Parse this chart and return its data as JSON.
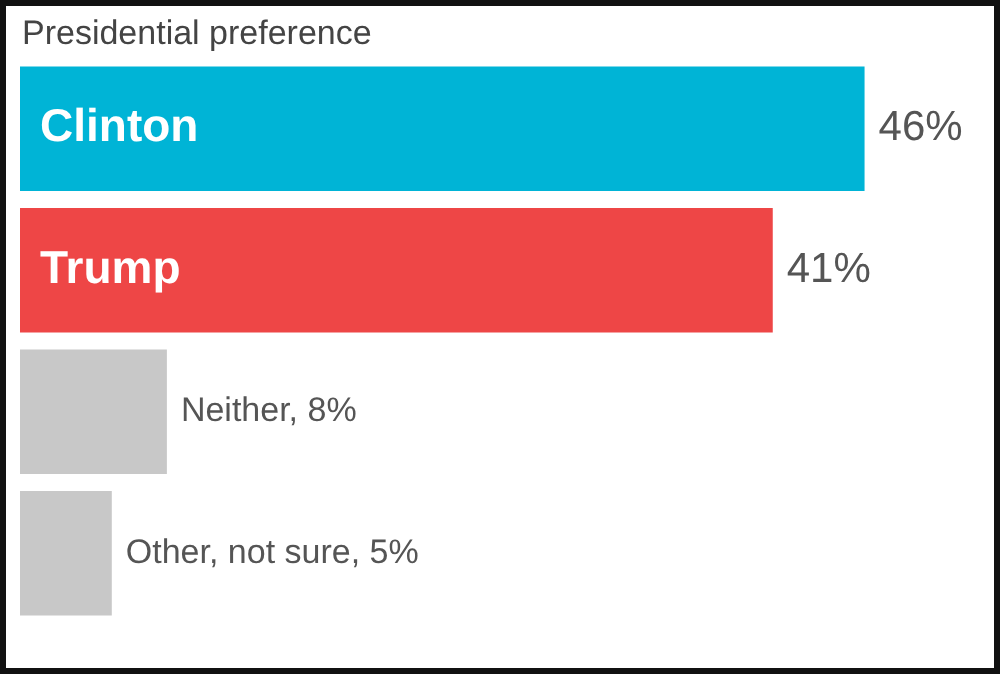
{
  "chart_data": {
    "type": "bar",
    "orientation": "horizontal",
    "title": "Presidential preference",
    "categories": [
      "Clinton",
      "Trump",
      null,
      null
    ],
    "values": [
      46,
      41,
      8,
      5
    ],
    "colors": [
      "#00b4d6",
      "#ee4646",
      "#c8c8c8",
      "#c8c8c8"
    ],
    "value_labels": [
      "46%",
      "41%",
      "Neither, 8%",
      "Other, not sure, 5%"
    ],
    "legend": false
  }
}
